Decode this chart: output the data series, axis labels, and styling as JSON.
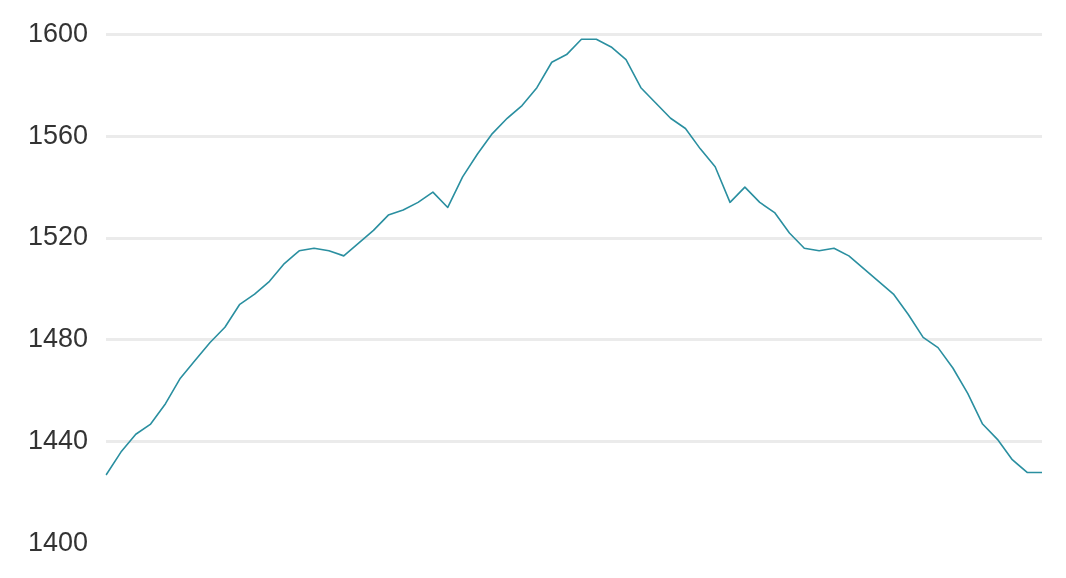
{
  "chart_data": {
    "type": "line",
    "categories": [
      null,
      null,
      null,
      null,
      null,
      null,
      null,
      null,
      null,
      null,
      null,
      null,
      null,
      null,
      null,
      null,
      null,
      null,
      null,
      null,
      null,
      null,
      null,
      null,
      null,
      null,
      null,
      null,
      null,
      null,
      null,
      null,
      null,
      null,
      null,
      null,
      null,
      null,
      null,
      null,
      null,
      null,
      null,
      null,
      null,
      null,
      null,
      null,
      null,
      null,
      null,
      null,
      null,
      null,
      null,
      null,
      null,
      null,
      null,
      null,
      null,
      null,
      null,
      null
    ],
    "series": [
      {
        "color": "#2a8fa0",
        "values": [
          1427,
          1436,
          1443,
          1447,
          1455,
          1465,
          1472,
          1479,
          1485,
          1494,
          1498,
          1503,
          1510,
          1515,
          1516,
          1515,
          1513,
          1518,
          1523,
          1529,
          1531,
          1534,
          1538,
          1532,
          1544,
          1553,
          1561,
          1567,
          1572,
          1579,
          1589,
          1592,
          1598,
          1598,
          1595,
          1590,
          1579,
          1573,
          1567,
          1563,
          1555,
          1548,
          1534,
          1540,
          1534,
          1530,
          1522,
          1516,
          1515,
          1516,
          1513,
          1508,
          1503,
          1498,
          1490,
          1481,
          1477,
          1469,
          1459,
          1447,
          1441,
          1433,
          1428,
          1428
        ]
      }
    ],
    "ylim": [
      1400,
      1600
    ],
    "yticks": [
      1400,
      1440,
      1480,
      1520,
      1560,
      1600
    ],
    "grid": "y",
    "tick_labels": "y",
    "marker": "none",
    "line_style": "solid",
    "legend": false
  }
}
